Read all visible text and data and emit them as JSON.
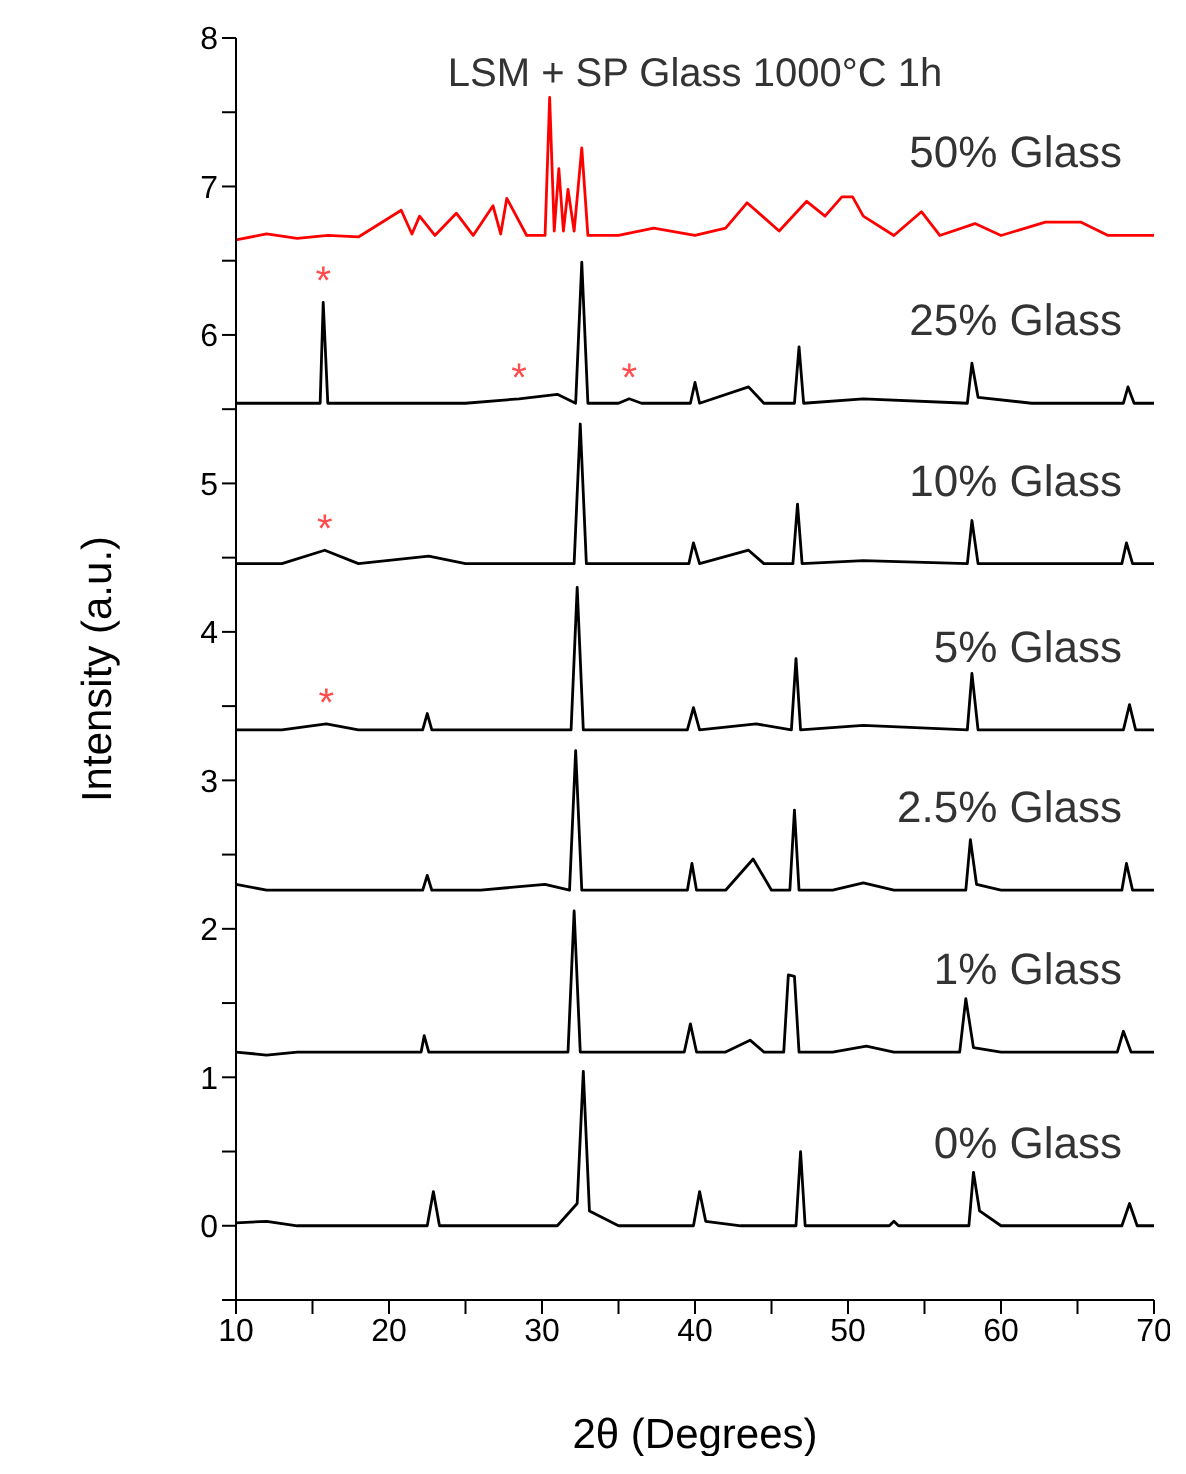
{
  "chart_data": {
    "type": "line",
    "title": "LSM + SP Glass 1000°C 1h",
    "xlabel": "2θ (Degrees)",
    "ylabel": "Intensity (a.u.)",
    "xlim": [
      10,
      70
    ],
    "xticks": [
      10,
      {
        "value": 15,
        "label": null
      },
      20,
      {
        "value": 25,
        "label": null
      },
      30,
      {
        "value": 35,
        "label": null
      },
      40,
      {
        "value": 45,
        "label": null
      },
      50,
      {
        "value": 55,
        "label": null
      },
      60,
      {
        "value": 65,
        "label": null
      },
      70
    ],
    "ylim": [
      -0.5,
      8
    ],
    "yticks": [
      {
        "value": -0.5,
        "label": null
      },
      0,
      {
        "value": 0.5,
        "label": null
      },
      1,
      {
        "value": 1.5,
        "label": null
      },
      2,
      {
        "value": 2.5,
        "label": null
      },
      3,
      {
        "value": 3.5,
        "label": null
      },
      4,
      {
        "value": 4.5,
        "label": null
      },
      5,
      {
        "value": 5.5,
        "label": null
      },
      6,
      {
        "value": 6.5,
        "label": null
      },
      7,
      {
        "value": 7.5,
        "label": null
      },
      8
    ],
    "grid": false,
    "legend": false,
    "marker": "none",
    "line_style": "solid",
    "series": [
      {
        "name": "50% Glass",
        "color": "#ff0000",
        "x": [
          10,
          12,
          14,
          16,
          18,
          20.8,
          21.5,
          22,
          23,
          24.4,
          25.5,
          26.8,
          27.3,
          27.7,
          29,
          30.2,
          30.5,
          30.8,
          31.1,
          31.4,
          31.7,
          32.1,
          32.6,
          33,
          35,
          37.3,
          40,
          42,
          43.4,
          44.4,
          45.5,
          47.3,
          48.5,
          49.6,
          50.3,
          51,
          53,
          54.8,
          56,
          58.3,
          60,
          62.9,
          65.2,
          67,
          70
        ],
        "values": [
          6.64,
          6.68,
          6.65,
          6.67,
          6.66,
          6.84,
          6.68,
          6.8,
          6.67,
          6.82,
          6.67,
          6.87,
          6.68,
          6.92,
          6.67,
          6.67,
          7.6,
          6.7,
          7.12,
          6.7,
          6.98,
          6.7,
          7.26,
          6.67,
          6.67,
          6.72,
          6.67,
          6.72,
          6.89,
          6.8,
          6.7,
          6.9,
          6.8,
          6.93,
          6.93,
          6.8,
          6.67,
          6.83,
          6.67,
          6.75,
          6.67,
          6.76,
          6.76,
          6.67,
          6.67
        ]
      },
      {
        "name": "25% Glass",
        "color": "#000000",
        "x": [
          10,
          13,
          15.5,
          15.7,
          16,
          20,
          25,
          28.5,
          31,
          32.2,
          32.6,
          33,
          35,
          35.7,
          36.5,
          39.7,
          40,
          40.3,
          43.5,
          44.5,
          46.5,
          46.8,
          47.1,
          51,
          57.8,
          58.1,
          58.5,
          62,
          68,
          68.3,
          68.7,
          70
        ],
        "values": [
          5.54,
          5.54,
          5.54,
          6.22,
          5.54,
          5.54,
          5.54,
          5.57,
          5.6,
          5.54,
          6.49,
          5.54,
          5.54,
          5.57,
          5.54,
          5.54,
          5.68,
          5.54,
          5.65,
          5.54,
          5.54,
          5.92,
          5.54,
          5.57,
          5.54,
          5.81,
          5.58,
          5.54,
          5.54,
          5.65,
          5.54,
          5.54
        ]
      },
      {
        "name": "10% Glass",
        "color": "#000000",
        "x": [
          10,
          13,
          15.8,
          18,
          22.6,
          25,
          32.1,
          32.5,
          32.9,
          35,
          39.6,
          39.9,
          40.3,
          43.5,
          44.5,
          46.4,
          46.7,
          47,
          51,
          57.8,
          58.1,
          58.5,
          62,
          67.9,
          68.2,
          68.6,
          70
        ],
        "values": [
          4.46,
          4.46,
          4.55,
          4.46,
          4.51,
          4.46,
          4.46,
          5.4,
          4.46,
          4.46,
          4.46,
          4.6,
          4.46,
          4.55,
          4.46,
          4.46,
          4.86,
          4.46,
          4.48,
          4.46,
          4.75,
          4.46,
          4.46,
          4.46,
          4.6,
          4.46,
          4.46
        ]
      },
      {
        "name": "5% Glass",
        "color": "#000000",
        "x": [
          10,
          13,
          15.9,
          18,
          22.2,
          22.5,
          22.8,
          26,
          31.9,
          32.3,
          32.7,
          35,
          39.5,
          39.9,
          40.3,
          44,
          46.3,
          46.6,
          46.9,
          51,
          57.8,
          58.1,
          58.5,
          62,
          68,
          68.4,
          68.8,
          70
        ],
        "values": [
          3.34,
          3.34,
          3.38,
          3.34,
          3.34,
          3.45,
          3.34,
          3.34,
          3.34,
          4.3,
          3.34,
          3.34,
          3.34,
          3.49,
          3.34,
          3.38,
          3.34,
          3.82,
          3.34,
          3.37,
          3.34,
          3.72,
          3.34,
          3.34,
          3.34,
          3.51,
          3.34,
          3.34
        ]
      },
      {
        "name": "2.5% Glass",
        "color": "#000000",
        "x": [
          10,
          12,
          15,
          18,
          22.2,
          22.5,
          22.8,
          26,
          30.2,
          31.8,
          32.2,
          32.6,
          35,
          39.5,
          39.8,
          40.1,
          42,
          43.8,
          45,
          46.2,
          46.5,
          46.8,
          49,
          51,
          53,
          57.7,
          58,
          58.4,
          60,
          65,
          67.9,
          68.2,
          68.6,
          70
        ],
        "values": [
          2.3,
          2.26,
          2.26,
          2.26,
          2.26,
          2.36,
          2.26,
          2.26,
          2.3,
          2.26,
          3.2,
          2.26,
          2.26,
          2.26,
          2.44,
          2.26,
          2.26,
          2.47,
          2.26,
          2.26,
          2.8,
          2.26,
          2.26,
          2.31,
          2.26,
          2.26,
          2.6,
          2.3,
          2.26,
          2.26,
          2.26,
          2.44,
          2.26,
          2.26
        ]
      },
      {
        "name": "1% Glass",
        "color": "#000000",
        "x": [
          10,
          12,
          14,
          16,
          20,
          22.1,
          22.3,
          22.6,
          25,
          30,
          31.7,
          32.1,
          32.5,
          35,
          39.3,
          39.7,
          40.1,
          42,
          43.6,
          44.5,
          45.8,
          46.1,
          46.5,
          46.8,
          49,
          51.2,
          53,
          57.3,
          57.7,
          58.2,
          60,
          65,
          67.6,
          68,
          68.5,
          70
        ],
        "values": [
          1.17,
          1.15,
          1.17,
          1.17,
          1.17,
          1.17,
          1.28,
          1.17,
          1.17,
          1.17,
          1.17,
          2.12,
          1.17,
          1.17,
          1.17,
          1.36,
          1.17,
          1.17,
          1.25,
          1.17,
          1.17,
          1.69,
          1.68,
          1.17,
          1.17,
          1.21,
          1.17,
          1.17,
          1.53,
          1.2,
          1.17,
          1.17,
          1.17,
          1.31,
          1.17,
          1.17
        ]
      },
      {
        "name": "0% Glass",
        "color": "#000000",
        "x": [
          10,
          12,
          14,
          16,
          18,
          20,
          22.5,
          22.9,
          23.3,
          25,
          28,
          31,
          32.3,
          32.7,
          33.1,
          35,
          39.9,
          40.3,
          40.7,
          43,
          46.6,
          46.9,
          47.2,
          50,
          52.7,
          53,
          53.3,
          56,
          57.9,
          58.2,
          58.6,
          60,
          62,
          65,
          67.9,
          68.4,
          68.9,
          70
        ],
        "values": [
          0.02,
          0.03,
          0,
          0,
          0,
          0,
          0,
          0.23,
          0,
          0,
          0,
          0,
          0.15,
          1.04,
          0.1,
          0,
          0,
          0.23,
          0.03,
          0,
          0,
          0.5,
          0,
          0,
          0,
          0.03,
          0,
          0,
          0,
          0.36,
          0.1,
          0,
          0,
          0,
          0,
          0.15,
          0,
          0
        ]
      }
    ],
    "annotations": [
      {
        "text": "*",
        "x": 15.7,
        "y": 6.22
      },
      {
        "text": "*",
        "x": 28.5,
        "y": 5.57
      },
      {
        "text": "*",
        "x": 35.7,
        "y": 5.57
      },
      {
        "text": "*",
        "x": 15.8,
        "y": 4.55
      },
      {
        "text": "*",
        "x": 15.9,
        "y": 3.38
      }
    ]
  }
}
